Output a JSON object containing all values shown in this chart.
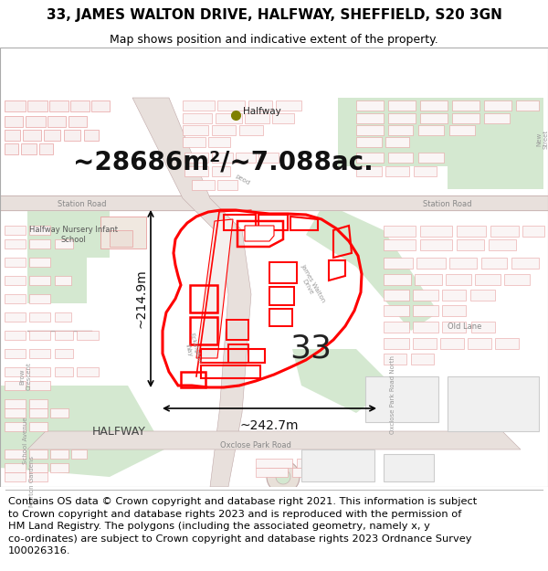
{
  "title_line1": "33, JAMES WALTON DRIVE, HALFWAY, SHEFFIELD, S20 3GN",
  "title_line2": "Map shows position and indicative extent of the property.",
  "area_text": "~28686m²/~7.088ac.",
  "label_number": "33",
  "dim_vertical": "~214.9m",
  "dim_horizontal": "~242.7m",
  "halfway_label": "Halfway",
  "footer_text": "Contains OS data © Crown copyright and database right 2021. This information is subject\nto Crown copyright and database rights 2023 and is reproduced with the permission of\nHM Land Registry. The polygons (including the associated geometry, namely x, y\nco-ordinates) are subject to Crown copyright and database rights 2023 Ordnance Survey\n100026316.",
  "map_bg_color": "#ffffff",
  "title_bg_color": "#ffffff",
  "footer_bg_color": "#ffffff",
  "property_color": "#ff0000",
  "building_outside_color": "#e8a0a0",
  "road_outline_color": "#d4b0b0",
  "green_color": "#d4e8d0",
  "grey_building_color": "#d8d8d8",
  "halfway_dot_color": "#808000",
  "title_fontsize": 11,
  "subtitle_fontsize": 9,
  "area_fontsize": 20,
  "label_fontsize": 26,
  "dim_fontsize": 10,
  "footer_fontsize": 8.2,
  "map_text_fontsize": 6.5
}
